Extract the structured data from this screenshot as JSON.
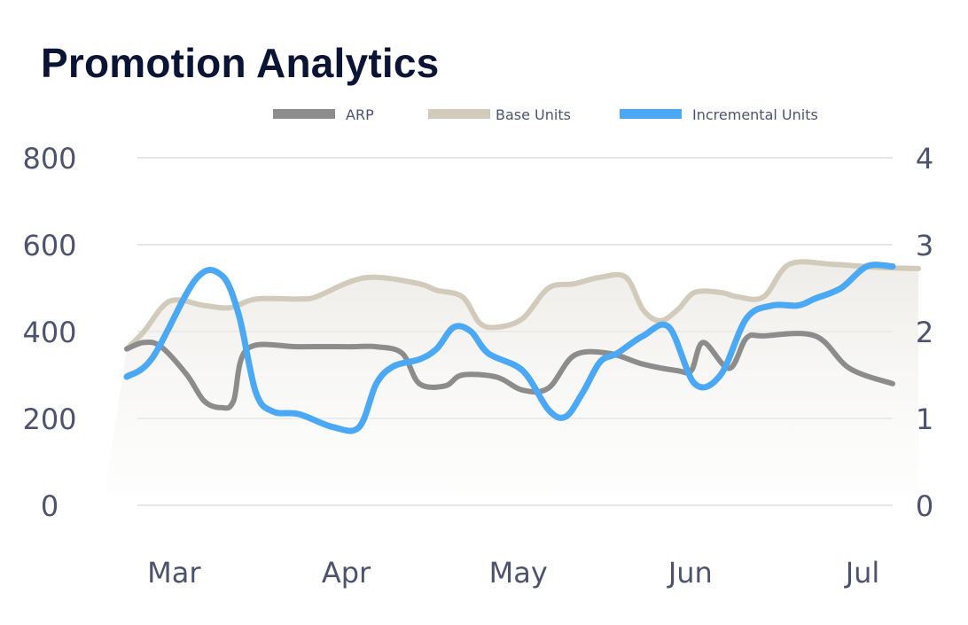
{
  "title": "Promotion Analytics",
  "chart_data": {
    "type": "line",
    "title": "Promotion Analytics",
    "x_ticks": [
      "Mar",
      "Apr",
      "May",
      "Jun",
      "Jul"
    ],
    "x_tick_positions": [
      0.45,
      1.45,
      2.45,
      3.45,
      4.45
    ],
    "xlim": [
      0,
      4.45
    ],
    "y_left": {
      "lim": [
        0,
        800
      ],
      "ticks": [
        "800",
        "600",
        "400",
        "200",
        "0"
      ]
    },
    "y_right": {
      "lim": [
        0,
        4
      ],
      "ticks": [
        "4",
        "3",
        "2",
        "1",
        "0"
      ]
    },
    "grid": true,
    "legend": "top-center",
    "series": [
      {
        "name": "ARP",
        "axis": "left",
        "color": "#8c8c8c",
        "x": [
          0,
          0.1,
          0.2,
          0.35,
          0.45,
          0.55,
          0.62,
          0.7,
          1.0,
          1.3,
          1.45,
          1.6,
          1.7,
          1.85,
          1.95,
          2.15,
          2.3,
          2.45,
          2.6,
          2.8,
          3.0,
          3.2,
          3.28,
          3.35,
          3.5,
          3.6,
          3.7,
          4.0,
          4.2,
          4.45
        ],
        "y": [
          360,
          375,
          365,
          300,
          240,
          225,
          240,
          360,
          365,
          365,
          365,
          350,
          280,
          275,
          300,
          295,
          265,
          270,
          345,
          350,
          325,
          310,
          310,
          375,
          315,
          385,
          390,
          390,
          315,
          280
        ]
      },
      {
        "name": "Base Units",
        "axis": "left",
        "color": "#d2cbbb",
        "x": [
          0,
          0.1,
          0.25,
          0.45,
          0.6,
          0.75,
          1.0,
          1.1,
          1.3,
          1.45,
          1.7,
          1.8,
          1.95,
          2.05,
          2.15,
          2.3,
          2.45,
          2.6,
          2.75,
          2.9,
          3.0,
          3.1,
          3.2,
          3.3,
          3.45,
          3.55,
          3.7,
          3.85,
          4.1,
          4.35,
          4.6
        ],
        "y": [
          360,
          400,
          470,
          460,
          455,
          475,
          475,
          480,
          515,
          525,
          510,
          495,
          480,
          420,
          410,
          430,
          500,
          510,
          525,
          525,
          450,
          425,
          450,
          490,
          490,
          480,
          480,
          555,
          555,
          548,
          545
        ]
      },
      {
        "name": "Incremental Units",
        "axis": "right",
        "color": "#4aa8f5",
        "x": [
          0,
          0.15,
          0.4,
          0.55,
          0.65,
          0.75,
          0.85,
          1.0,
          1.2,
          1.35,
          1.45,
          1.55,
          1.7,
          1.8,
          1.9,
          2.0,
          2.1,
          2.3,
          2.45,
          2.55,
          2.65,
          2.75,
          2.85,
          3.0,
          3.15,
          3.3,
          3.45,
          3.6,
          3.75,
          3.9,
          4.0,
          4.15,
          4.3,
          4.45
        ],
        "y": [
          1.48,
          1.7,
          2.6,
          2.65,
          2.2,
          1.3,
          1.08,
          1.05,
          0.9,
          0.9,
          1.4,
          1.6,
          1.68,
          1.8,
          2.05,
          2.0,
          1.75,
          1.55,
          1.1,
          1.02,
          1.3,
          1.65,
          1.75,
          1.95,
          2.05,
          1.4,
          1.5,
          2.15,
          2.3,
          2.3,
          2.38,
          2.5,
          2.75,
          2.75
        ]
      }
    ]
  }
}
